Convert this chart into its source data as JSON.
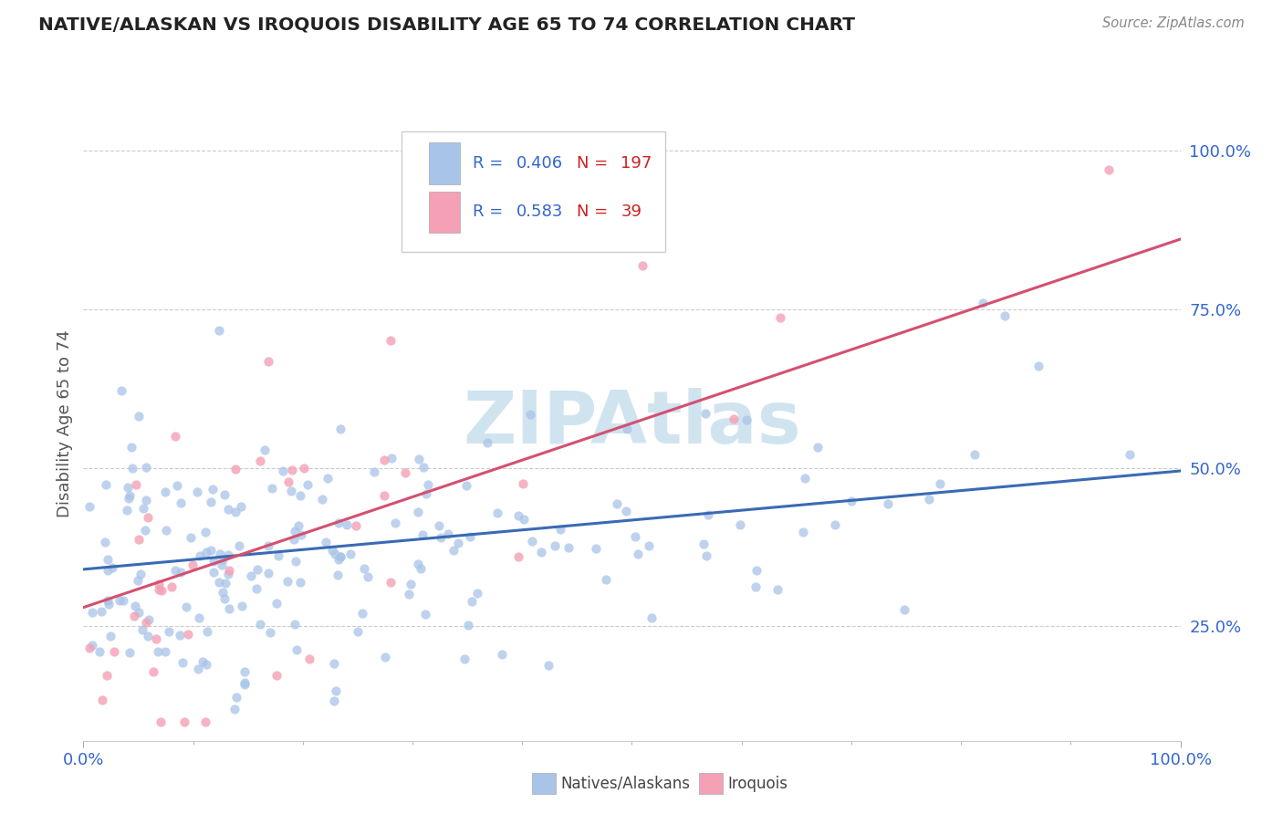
{
  "title": "NATIVE/ALASKAN VS IROQUOIS DISABILITY AGE 65 TO 74 CORRELATION CHART",
  "source": "Source: ZipAtlas.com",
  "ylabel": "Disability Age 65 to 74",
  "r_native": 0.406,
  "n_native": 197,
  "r_iroquois": 0.583,
  "n_iroquois": 39,
  "color_native": "#a8c4e8",
  "color_iroquois": "#f4a0b5",
  "trendline_color_native": "#3a6ab5",
  "trendline_color_iroquois": "#d45070",
  "legend_r_color": "#3366cc",
  "legend_n_color": "#cc2222",
  "background_color": "#ffffff",
  "watermark_color": "#d0e4f0",
  "xlim": [
    0.0,
    1.0
  ],
  "ylim": [
    0.07,
    1.07
  ],
  "yticks": [
    0.25,
    0.5,
    0.75,
    1.0
  ],
  "ytick_labels": [
    "25.0%",
    "50.0%",
    "75.0%",
    "100.0%"
  ],
  "xtick_labels": [
    "0.0%",
    "100.0%"
  ],
  "trend_native_intercept": 0.34,
  "trend_native_slope": 0.155,
  "trend_iroquois_intercept": 0.28,
  "trend_iroquois_slope": 0.58
}
